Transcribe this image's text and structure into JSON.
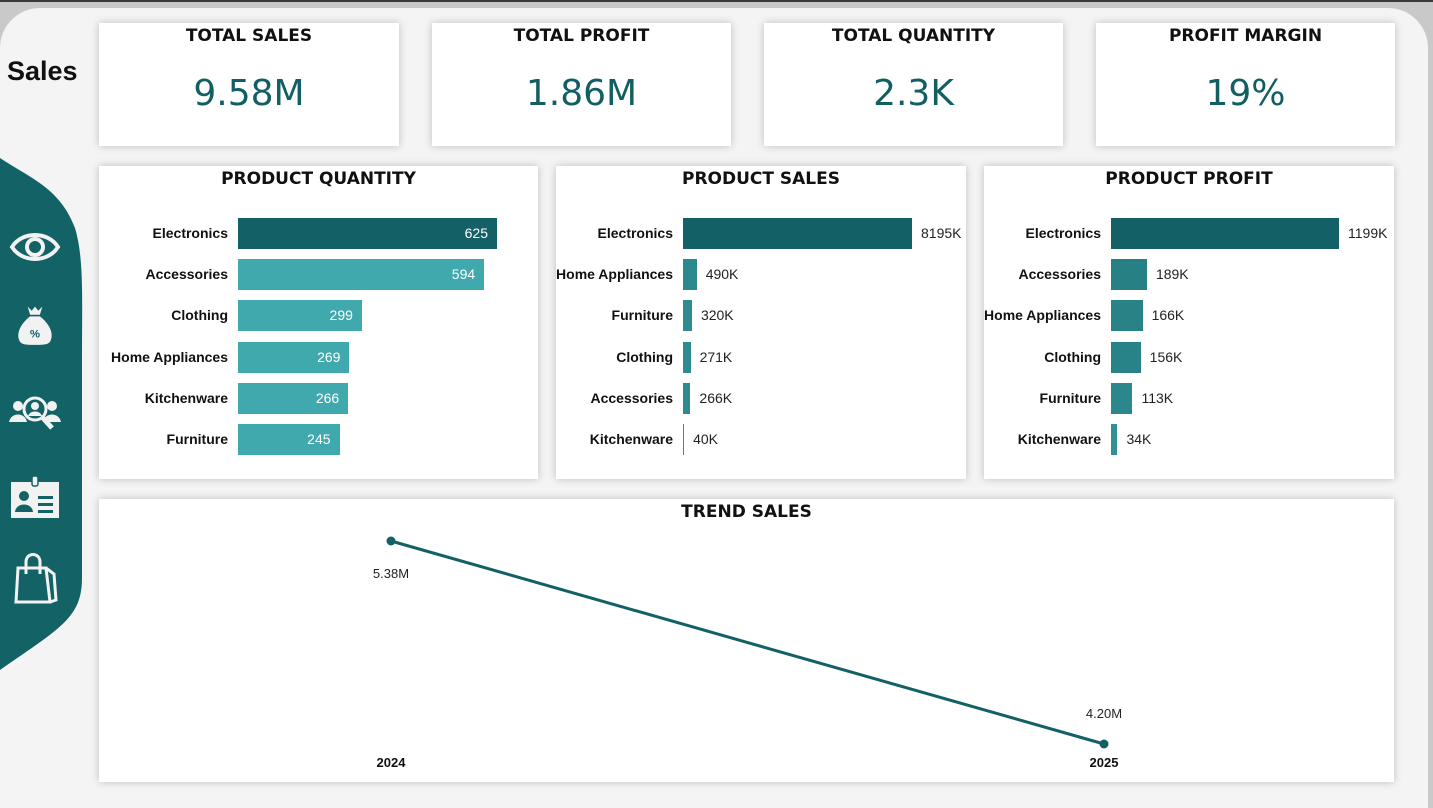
{
  "page_title": "Sales",
  "colors": {
    "accent_dark": "#136166",
    "accent_light": "#40a9ad",
    "sidebar": "#136266"
  },
  "sidebar": {
    "items": [
      {
        "icon": "eye-icon"
      },
      {
        "icon": "money-bag-percent-icon"
      },
      {
        "icon": "people-search-icon"
      },
      {
        "icon": "id-card-icon"
      },
      {
        "icon": "shopping-bag-icon"
      }
    ]
  },
  "kpis": [
    {
      "label": "TOTAL SALES",
      "value": "9.58M"
    },
    {
      "label": "TOTAL PROFIT",
      "value": "1.86M"
    },
    {
      "label": "TOTAL QUANTITY",
      "value": "2.3K"
    },
    {
      "label": "PROFIT MARGIN",
      "value": "19%"
    }
  ],
  "chart_data": [
    {
      "type": "bar",
      "orientation": "horizontal",
      "title": "PRODUCT QUANTITY",
      "categories": [
        "Electronics",
        "Accessories",
        "Clothing",
        "Home Appliances",
        "Kitchenware",
        "Furniture"
      ],
      "values": [
        625,
        594,
        299,
        269,
        266,
        245
      ],
      "labels": [
        "625",
        "594",
        "299",
        "269",
        "266",
        "245"
      ],
      "label_position": "inside"
    },
    {
      "type": "bar",
      "orientation": "horizontal",
      "title": "PRODUCT SALES",
      "categories": [
        "Electronics",
        "Home Appliances",
        "Furniture",
        "Clothing",
        "Accessories",
        "Kitchenware"
      ],
      "values": [
        8195,
        490,
        320,
        271,
        266,
        40
      ],
      "labels": [
        "8195K",
        "490K",
        "320K",
        "271K",
        "266K",
        "40K"
      ],
      "label_position": "outside"
    },
    {
      "type": "bar",
      "orientation": "horizontal",
      "title": "PRODUCT PROFIT",
      "categories": [
        "Electronics",
        "Accessories",
        "Home Appliances",
        "Clothing",
        "Furniture",
        "Kitchenware"
      ],
      "values": [
        1199,
        189,
        166,
        156,
        113,
        34
      ],
      "labels": [
        "1199K",
        "189K",
        "166K",
        "156K",
        "113K",
        "34K"
      ],
      "label_position": "outside"
    },
    {
      "type": "line",
      "title": "TREND SALES",
      "x": [
        "2024",
        "2025"
      ],
      "y": [
        5.38,
        4.2
      ],
      "labels": [
        "5.38M",
        "4.20M"
      ]
    }
  ]
}
